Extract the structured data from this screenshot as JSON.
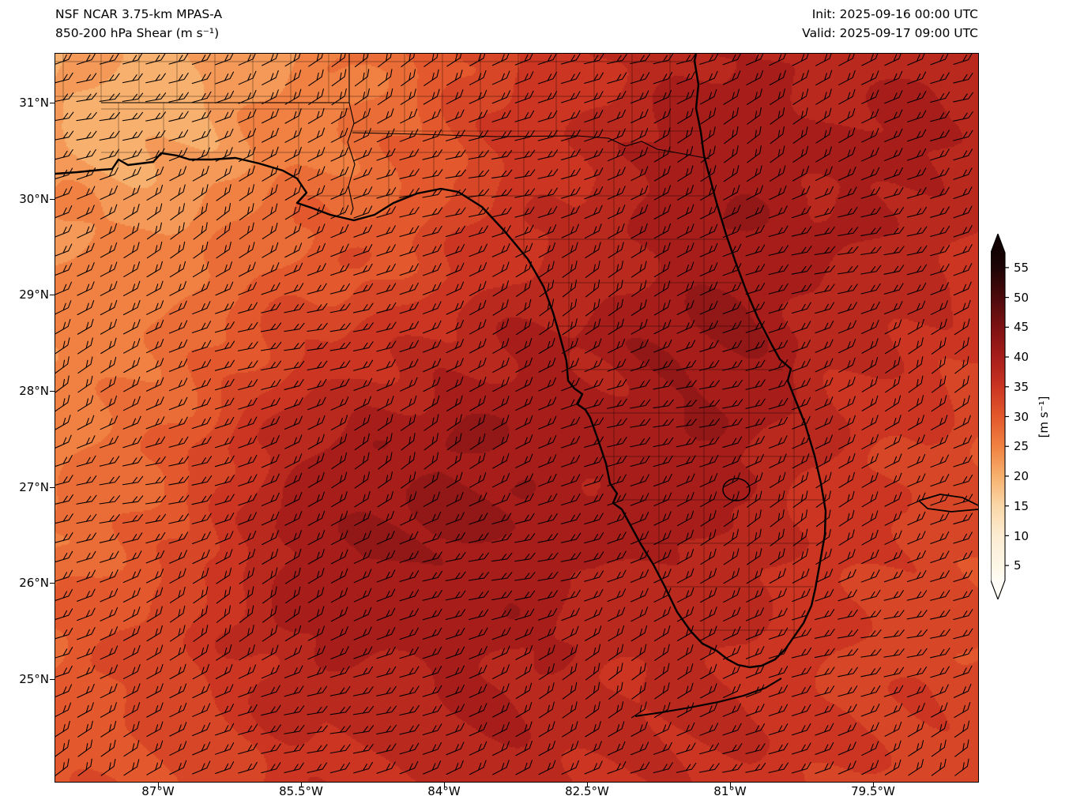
{
  "header": {
    "title_line1": "NSF NCAR 3.75-km MPAS-A",
    "title_line2": "850-200 hPa Shear (m s⁻¹)",
    "init_line": "Init: 2025-09-16 00:00 UTC",
    "valid_line": "Valid: 2025-09-17 09:00 UTC"
  },
  "axes": {
    "lat_ticks": [
      "31°N",
      "30°N",
      "29°N",
      "28°N",
      "27°N",
      "26°N",
      "25°N"
    ],
    "lon_ticks": [
      "87°W",
      "85.5°W",
      "84°W",
      "82.5°W",
      "81°W",
      "79.5°W"
    ]
  },
  "colorbar": {
    "label": "[m s⁻¹]",
    "ticks": [
      "55",
      "50",
      "45",
      "40",
      "35",
      "30",
      "25",
      "20",
      "15",
      "10",
      "5"
    ],
    "tick_values": [
      55,
      50,
      45,
      40,
      35,
      30,
      25,
      20,
      15,
      10,
      5
    ],
    "stops": [
      [
        2.5,
        "#fffdf5"
      ],
      [
        5,
        "#fdf6e6"
      ],
      [
        10,
        "#fcecd2"
      ],
      [
        15,
        "#fad7a8"
      ],
      [
        20,
        "#f7b06d"
      ],
      [
        25,
        "#f08142"
      ],
      [
        30,
        "#e3582c"
      ],
      [
        35,
        "#cb3522"
      ],
      [
        40,
        "#a61d1a"
      ],
      [
        45,
        "#7d1113"
      ],
      [
        50,
        "#4c0a0c"
      ],
      [
        55,
        "#1e0405"
      ],
      [
        57.5,
        "#120203"
      ]
    ]
  },
  "chart_data": {
    "type": "heatmap",
    "title": "NSF NCAR 3.75-km MPAS-A — 850-200 hPa Shear (m s⁻¹)",
    "init": "2025-09-16 00:00 UTC",
    "valid": "2025-09-17 09:00 UTC",
    "units": "m s⁻¹",
    "region": "Florida and adjacent Gulf of Mexico / Atlantic",
    "lon_range_degW": [
      88.1,
      78.4
    ],
    "lat_range_degN": [
      23.9,
      31.5
    ],
    "colorbar_ticks": [
      5,
      10,
      15,
      20,
      25,
      30,
      35,
      40,
      45,
      50,
      55
    ],
    "colorbar_interval": 2.5,
    "grid": {
      "description": "850-200 hPa vertical wind shear magnitude (m/s), coarse sample grid, rows north to south",
      "lon_samples_degW": [
        87.8,
        87.1,
        86.3,
        85.6,
        84.9,
        84.1,
        83.4,
        82.7,
        81.9,
        81.2,
        80.5,
        79.7,
        79.0
      ],
      "lat_samples_degN": [
        31.4,
        30.7,
        30.0,
        29.3,
        28.6,
        27.9,
        27.2,
        26.5,
        25.8,
        25.1,
        24.4
      ],
      "values": [
        [
          21,
          20,
          20,
          22,
          26,
          30,
          34,
          37,
          39,
          40,
          39,
          38,
          37
        ],
        [
          20,
          19,
          21,
          24,
          27,
          31,
          35,
          38,
          40,
          40,
          39,
          38,
          37
        ],
        [
          22,
          22,
          24,
          27,
          29,
          32,
          35,
          38,
          40,
          40,
          39,
          38,
          36
        ],
        [
          23,
          25,
          27,
          30,
          32,
          34,
          36,
          38,
          39,
          40,
          39,
          37,
          35
        ],
        [
          24,
          27,
          30,
          33,
          36,
          37,
          38,
          39,
          40,
          40,
          38,
          36,
          34
        ],
        [
          25,
          28,
          32,
          36,
          39,
          40,
          39,
          39,
          40,
          40,
          38,
          35,
          33
        ],
        [
          26,
          29,
          33,
          38,
          41,
          41,
          40,
          40,
          40,
          39,
          37,
          34,
          32
        ],
        [
          27,
          30,
          34,
          38,
          41,
          41,
          40,
          40,
          39,
          38,
          36,
          33,
          31
        ],
        [
          28,
          31,
          34,
          37,
          39,
          40,
          40,
          39,
          38,
          37,
          35,
          32,
          31
        ],
        [
          28,
          31,
          33,
          36,
          38,
          39,
          39,
          38,
          37,
          36,
          34,
          32,
          31
        ],
        [
          29,
          31,
          33,
          35,
          37,
          38,
          38,
          37,
          36,
          35,
          34,
          32,
          31
        ]
      ]
    },
    "wind_barbs": {
      "symbol": "wind barbs",
      "coverage": "full domain, regular grid",
      "approx_grid": [
        40,
        38
      ],
      "mean_flow": "easterly"
    }
  }
}
